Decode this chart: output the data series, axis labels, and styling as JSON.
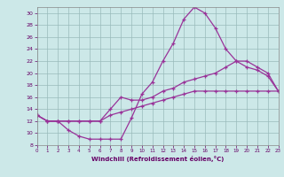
{
  "xlabel": "Windchill (Refroidissement éolien,°C)",
  "bg_color": "#cce8e8",
  "line_color": "#993399",
  "grid_color": "#99bbbb",
  "xlim": [
    0,
    23
  ],
  "ylim": [
    8,
    31
  ],
  "xticks": [
    0,
    1,
    2,
    3,
    4,
    5,
    6,
    7,
    8,
    9,
    10,
    11,
    12,
    13,
    14,
    15,
    16,
    17,
    18,
    19,
    20,
    21,
    22,
    23
  ],
  "yticks": [
    8,
    10,
    12,
    14,
    16,
    18,
    20,
    22,
    24,
    26,
    28,
    30
  ],
  "curve1_x": [
    0,
    1,
    2,
    3,
    4,
    5,
    6,
    7,
    8,
    9,
    10,
    11,
    12,
    13,
    14,
    15,
    16,
    17,
    18,
    19,
    20,
    21,
    22,
    23
  ],
  "curve1_y": [
    13,
    12,
    12,
    10.5,
    9.5,
    9.0,
    9.0,
    9.0,
    9.0,
    12.5,
    16.5,
    18.5,
    22,
    25,
    29,
    31,
    30,
    27.5,
    24,
    22,
    21,
    20.5,
    19.5,
    17
  ],
  "curve2_x": [
    0,
    1,
    2,
    3,
    4,
    5,
    6,
    7,
    8,
    9,
    10,
    11,
    12,
    13,
    14,
    15,
    16,
    17,
    18,
    19,
    20,
    21,
    22,
    23
  ],
  "curve2_y": [
    13,
    12,
    12,
    12,
    12,
    12,
    12,
    14,
    16,
    15.5,
    15.5,
    16,
    17,
    17.5,
    18.5,
    19,
    19.5,
    20,
    21,
    22,
    22,
    21,
    20,
    17
  ],
  "curve3_x": [
    0,
    1,
    2,
    3,
    4,
    5,
    6,
    7,
    8,
    9,
    10,
    11,
    12,
    13,
    14,
    15,
    16,
    17,
    18,
    19,
    20,
    21,
    22,
    23
  ],
  "curve3_y": [
    13,
    12,
    12,
    12,
    12,
    12,
    12,
    13,
    13.5,
    14,
    14.5,
    15,
    15.5,
    16,
    16.5,
    17,
    17,
    17,
    17,
    17,
    17,
    17,
    17,
    17
  ]
}
